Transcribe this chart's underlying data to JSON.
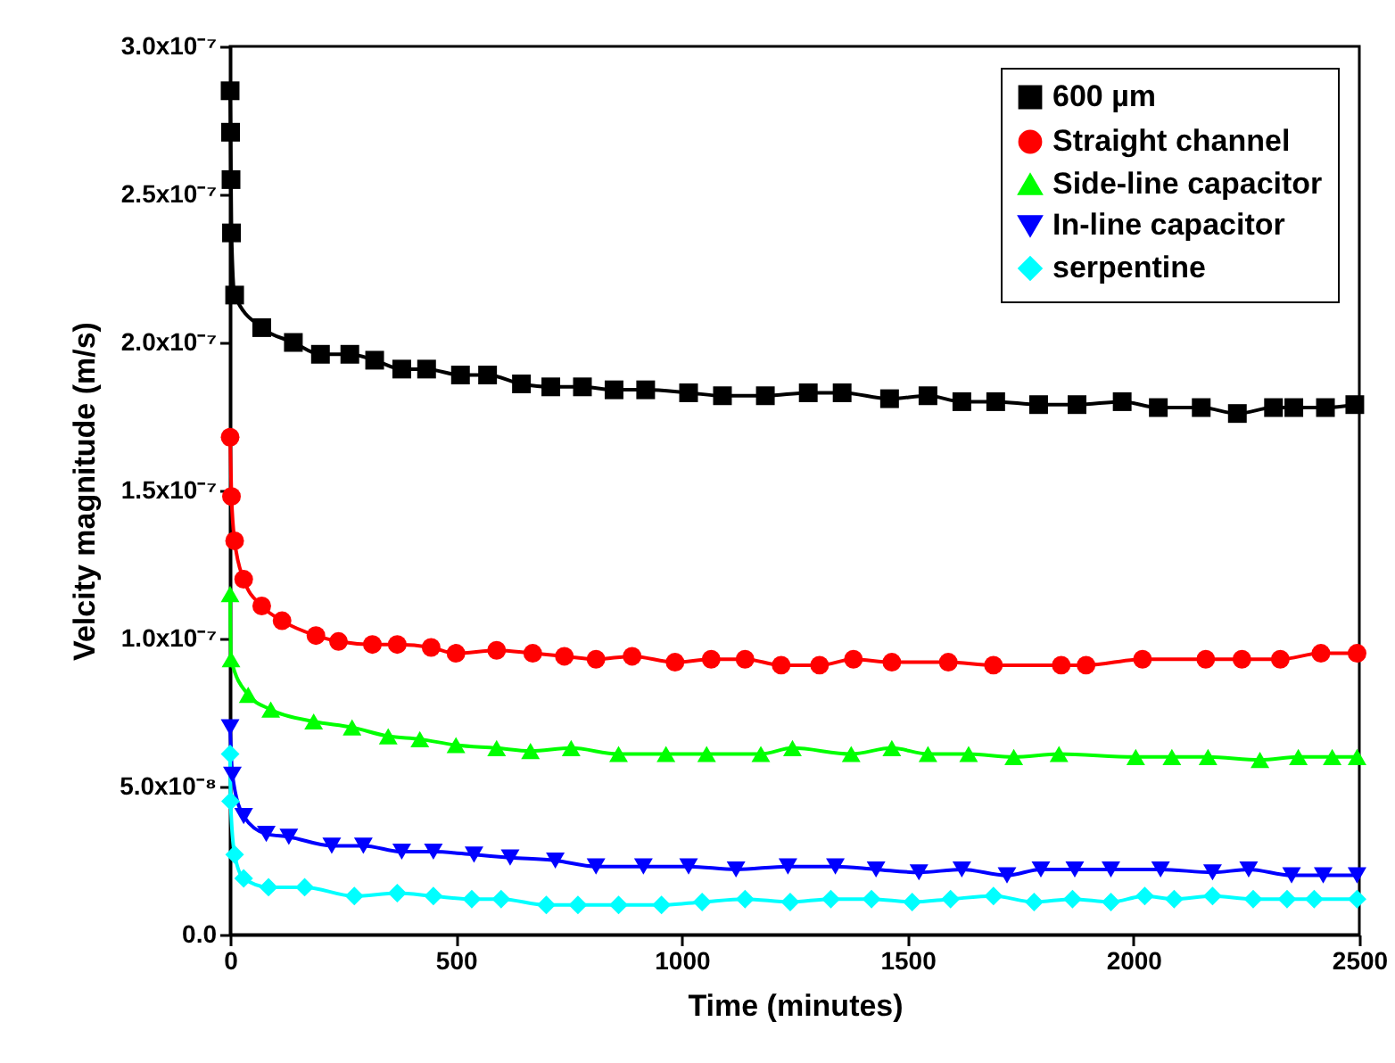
{
  "chart_data": {
    "type": "line",
    "xlabel": "Time (minutes)",
    "ylabel": "Velcity magnitude (m/s)",
    "xlim": [
      0,
      2500
    ],
    "xticks": [
      0,
      500,
      1000,
      1500,
      2000,
      2500
    ],
    "ylim": [
      0,
      3e-07
    ],
    "yticks": [
      {
        "value": 0,
        "label": "0.0"
      },
      {
        "value": 5e-08,
        "label": "5.0x10⁻⁸"
      },
      {
        "value": 1e-07,
        "label": "1.0x10⁻⁷"
      },
      {
        "value": 1.5e-07,
        "label": "1.5x10⁻⁷"
      },
      {
        "value": 2e-07,
        "label": "2.0x10⁻⁷"
      },
      {
        "value": 2.5e-07,
        "label": "2.5x10⁻⁷"
      },
      {
        "value": 3e-07,
        "label": "3.0x10⁻⁷"
      }
    ],
    "legend": "top right",
    "grid": false,
    "series": [
      {
        "name": "600 µm",
        "color": "#000000",
        "marker": "square",
        "x": [
          0,
          1,
          2,
          3,
          10,
          70,
          140,
          200,
          265,
          320,
          380,
          435,
          510,
          570,
          645,
          710,
          780,
          850,
          920,
          1015,
          1090,
          1185,
          1280,
          1355,
          1460,
          1545,
          1620,
          1695,
          1790,
          1875,
          1975,
          2055,
          2150,
          2230,
          2310,
          2355,
          2425,
          2490
        ],
        "values": [
          2.85e-07,
          2.71e-07,
          2.55e-07,
          2.37e-07,
          2.16e-07,
          2.05e-07,
          2e-07,
          1.96e-07,
          1.96e-07,
          1.94e-07,
          1.91e-07,
          1.91e-07,
          1.89e-07,
          1.89e-07,
          1.86e-07,
          1.85e-07,
          1.85e-07,
          1.84e-07,
          1.84e-07,
          1.83e-07,
          1.82e-07,
          1.82e-07,
          1.83e-07,
          1.83e-07,
          1.81e-07,
          1.82e-07,
          1.8e-07,
          1.8e-07,
          1.79e-07,
          1.79e-07,
          1.8e-07,
          1.78e-07,
          1.78e-07,
          1.76e-07,
          1.78e-07,
          1.78e-07,
          1.78e-07,
          1.79e-07
        ]
      },
      {
        "name": "Straight channel",
        "color": "#ff0000",
        "marker": "circle",
        "x": [
          0,
          3,
          10,
          30,
          70,
          115,
          190,
          240,
          315,
          370,
          445,
          500,
          590,
          670,
          740,
          810,
          890,
          985,
          1065,
          1140,
          1220,
          1305,
          1380,
          1465,
          1590,
          1690,
          1840,
          1895,
          2020,
          2160,
          2240,
          2325,
          2415,
          2495
        ],
        "values": [
          1.68e-07,
          1.48e-07,
          1.33e-07,
          1.2e-07,
          1.11e-07,
          1.06e-07,
          1.01e-07,
          9.9e-08,
          9.8e-08,
          9.8e-08,
          9.7e-08,
          9.5e-08,
          9.6e-08,
          9.5e-08,
          9.4e-08,
          9.3e-08,
          9.4e-08,
          9.2e-08,
          9.3e-08,
          9.3e-08,
          9.1e-08,
          9.1e-08,
          9.3e-08,
          9.2e-08,
          9.2e-08,
          9.1e-08,
          9.1e-08,
          9.1e-08,
          9.3e-08,
          9.3e-08,
          9.3e-08,
          9.3e-08,
          9.5e-08,
          9.5e-08
        ]
      },
      {
        "name": "Side-line capacitor",
        "color": "#00ff00",
        "marker": "triangle",
        "x": [
          0,
          2,
          40,
          90,
          185,
          270,
          350,
          420,
          500,
          590,
          665,
          755,
          860,
          965,
          1055,
          1175,
          1245,
          1375,
          1465,
          1545,
          1635,
          1735,
          1835,
          2005,
          2085,
          2165,
          2280,
          2365,
          2440,
          2495
        ],
        "values": [
          1.15e-07,
          9.3e-08,
          8.1e-08,
          7.6e-08,
          7.2e-08,
          7e-08,
          6.7e-08,
          6.6e-08,
          6.4e-08,
          6.3e-08,
          6.2e-08,
          6.3e-08,
          6.1e-08,
          6.1e-08,
          6.1e-08,
          6.1e-08,
          6.3e-08,
          6.1e-08,
          6.3e-08,
          6.1e-08,
          6.1e-08,
          6e-08,
          6.1e-08,
          6e-08,
          6e-08,
          6e-08,
          5.9e-08,
          6e-08,
          6e-08,
          6e-08
        ]
      },
      {
        "name": "In-line capacitor",
        "color": "#0000ff",
        "marker": "triangle-down",
        "x": [
          0,
          5,
          30,
          80,
          130,
          225,
          295,
          380,
          450,
          540,
          620,
          720,
          810,
          915,
          1015,
          1120,
          1235,
          1340,
          1430,
          1525,
          1620,
          1720,
          1795,
          1870,
          1950,
          2060,
          2175,
          2255,
          2350,
          2420,
          2495
        ],
        "values": [
          7e-08,
          5.4e-08,
          4e-08,
          3.4e-08,
          3.3e-08,
          3e-08,
          3e-08,
          2.8e-08,
          2.8e-08,
          2.7e-08,
          2.6e-08,
          2.5e-08,
          2.3e-08,
          2.3e-08,
          2.3e-08,
          2.2e-08,
          2.3e-08,
          2.3e-08,
          2.2e-08,
          2.1e-08,
          2.2e-08,
          2e-08,
          2.2e-08,
          2.2e-08,
          2.2e-08,
          2.2e-08,
          2.1e-08,
          2.2e-08,
          2e-08,
          2e-08,
          2e-08
        ]
      },
      {
        "name": "serpentine",
        "color": "#00ffff",
        "marker": "diamond",
        "x": [
          0,
          1,
          10,
          30,
          85,
          165,
          275,
          370,
          450,
          535,
          600,
          700,
          770,
          860,
          955,
          1045,
          1140,
          1240,
          1330,
          1420,
          1510,
          1595,
          1690,
          1780,
          1865,
          1950,
          2025,
          2090,
          2175,
          2265,
          2340,
          2400,
          2495
        ],
        "values": [
          6.1e-08,
          4.5e-08,
          2.7e-08,
          1.9e-08,
          1.6e-08,
          1.6e-08,
          1.3e-08,
          1.4e-08,
          1.3e-08,
          1.2e-08,
          1.2e-08,
          1e-08,
          1e-08,
          1e-08,
          1e-08,
          1.1e-08,
          1.2e-08,
          1.1e-08,
          1.2e-08,
          1.2e-08,
          1.1e-08,
          1.2e-08,
          1.3e-08,
          1.1e-08,
          1.2e-08,
          1.1e-08,
          1.3e-08,
          1.2e-08,
          1.3e-08,
          1.2e-08,
          1.2e-08,
          1.2e-08,
          1.2e-08
        ]
      }
    ]
  }
}
